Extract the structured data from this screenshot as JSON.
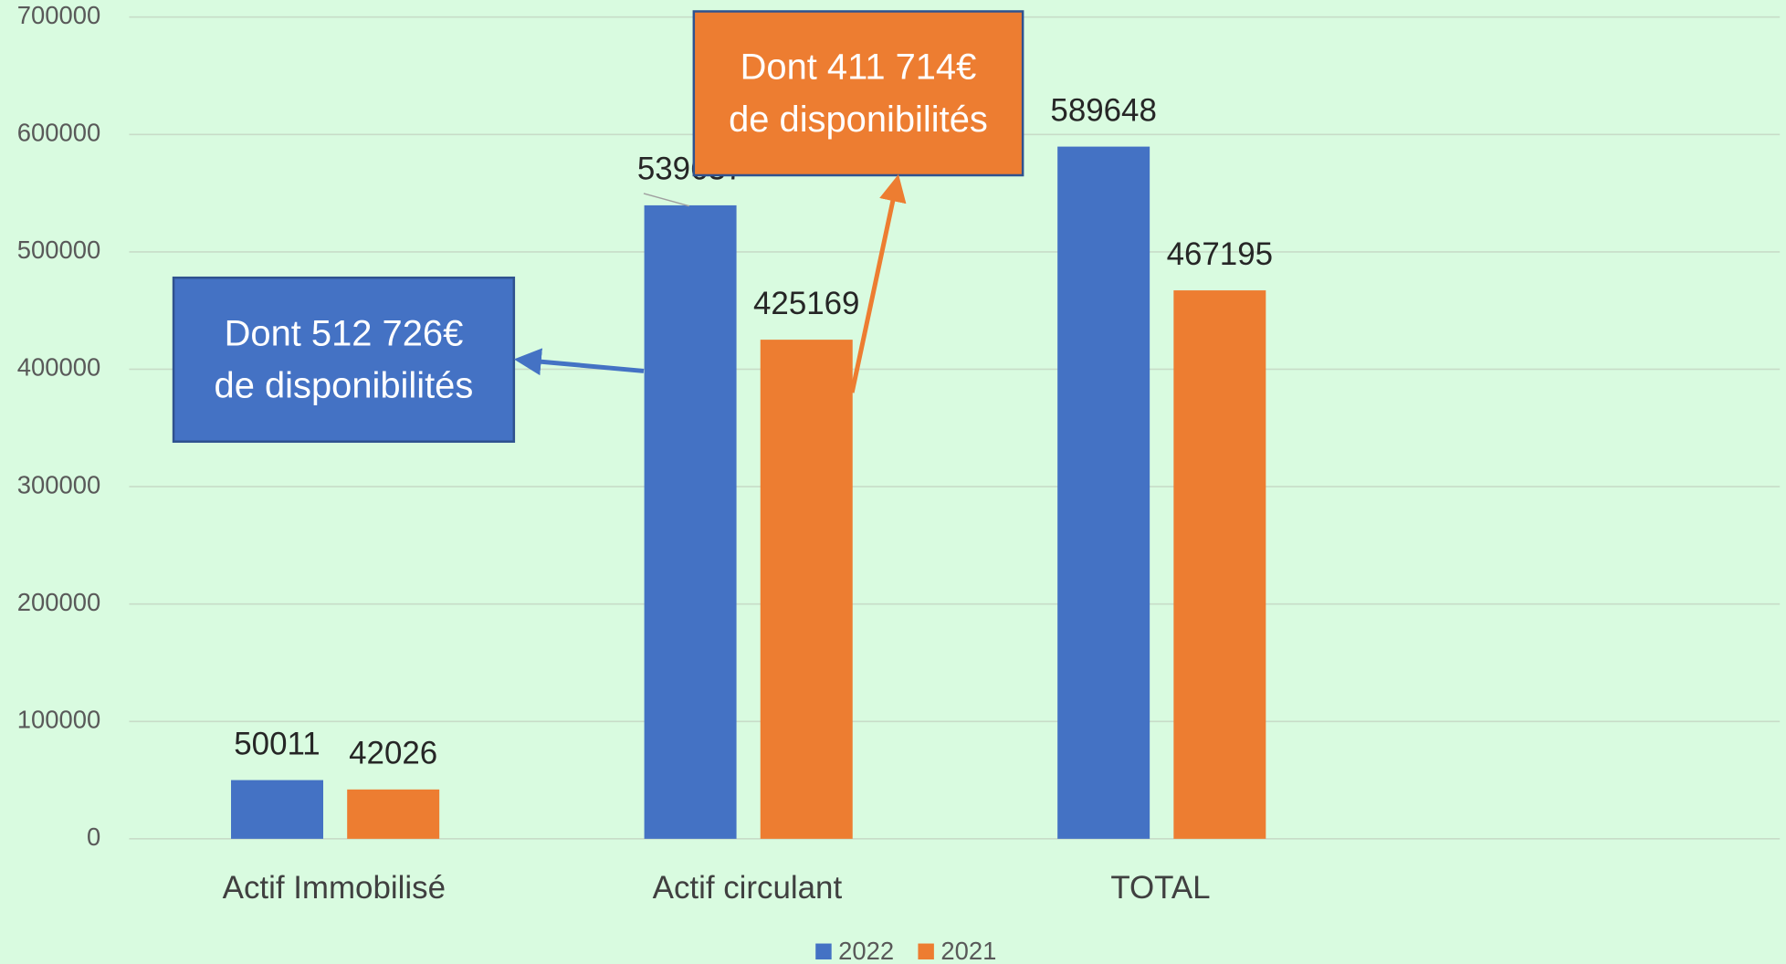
{
  "chart_data": {
    "type": "bar",
    "categories": [
      "Actif Immobilisé",
      "Actif circulant",
      "TOTAL",
      null
    ],
    "series": [
      {
        "name": "2022",
        "color": "#4472c4",
        "values": [
          50011,
          539637,
          589648,
          null
        ]
      },
      {
        "name": "2021",
        "color": "#ed7d31",
        "values": [
          42026,
          425169,
          467195,
          null
        ]
      }
    ],
    "ylim": [
      0,
      700000
    ],
    "yticks": [
      0,
      100000,
      200000,
      300000,
      400000,
      500000,
      600000,
      700000
    ],
    "grid": true,
    "legend": "bottom",
    "annotations": [
      {
        "lines": [
          "Dont 512 726€",
          "de disponibilités"
        ],
        "color": "#4472c4"
      },
      {
        "lines": [
          "Dont 411 714€",
          "de disponibilités"
        ],
        "color": "#ed7d31"
      }
    ]
  }
}
